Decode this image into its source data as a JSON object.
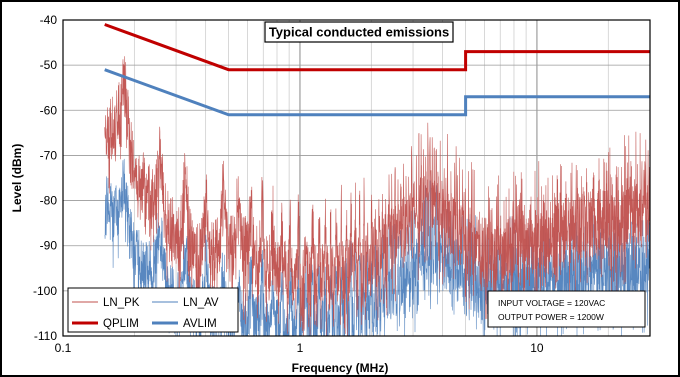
{
  "chart_data": {
    "type": "line",
    "title": "Typical conducted emissions",
    "xlabel": "Frequency (MHz)",
    "ylabel": "Level (dBm)",
    "xscale": "log",
    "xlim": [
      0.1,
      30
    ],
    "ylim": [
      -110,
      -40
    ],
    "xticks": [
      "0.1",
      "1",
      "10"
    ],
    "yticks": [
      "-40",
      "-50",
      "-60",
      "-70",
      "-80",
      "-90",
      "-100",
      "-110"
    ],
    "grid": true,
    "legend_position": "bottom-left",
    "annotation": [
      "INPUT VOLTAGE = 120VAC",
      "OUTPUT POWER = 1200W"
    ],
    "series": [
      {
        "name": "LN_PK",
        "color": "#c0504d",
        "style": "noisy-spectrum",
        "x": [
          0.15,
          0.17,
          0.2,
          0.25,
          0.3,
          0.4,
          0.5,
          0.6,
          0.8,
          1.0,
          1.5,
          2.0,
          3.0,
          3.5,
          4.0,
          5.0,
          6.0,
          8.0,
          10.0,
          15.0,
          20.0,
          30.0
        ],
        "values": [
          -57,
          -57,
          -65,
          -75,
          -80,
          -85,
          -82,
          -83,
          -88,
          -90,
          -89,
          -86,
          -77,
          -72,
          -76,
          -82,
          -86,
          -84,
          -83,
          -80,
          -79,
          -75
        ]
      },
      {
        "name": "LN_AV",
        "color": "#4f81bd",
        "style": "noisy-spectrum",
        "x": [
          0.15,
          0.17,
          0.2,
          0.25,
          0.3,
          0.4,
          0.5,
          0.6,
          0.8,
          1.0,
          1.5,
          2.0,
          3.0,
          3.5,
          4.0,
          5.0,
          6.0,
          8.0,
          10.0,
          15.0,
          20.0,
          30.0
        ],
        "values": [
          -73,
          -78,
          -85,
          -90,
          -95,
          -98,
          -100,
          -100,
          -101,
          -101,
          -100,
          -98,
          -90,
          -85,
          -88,
          -92,
          -95,
          -94,
          -93,
          -92,
          -91,
          -90
        ]
      },
      {
        "name": "QPLIM",
        "color": "#c00000",
        "style": "limit",
        "x": [
          0.15,
          0.5,
          0.5,
          5,
          5,
          30
        ],
        "values": [
          -41,
          -51,
          -51,
          -51,
          -47,
          -47
        ]
      },
      {
        "name": "AVLIM",
        "color": "#4f81bd",
        "style": "limit",
        "x": [
          0.15,
          0.5,
          0.5,
          5,
          5,
          30
        ],
        "values": [
          -51,
          -61,
          -61,
          -61,
          -57,
          -57
        ]
      }
    ]
  }
}
